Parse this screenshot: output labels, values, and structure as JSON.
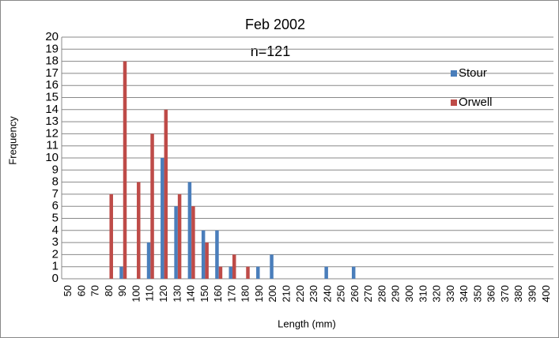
{
  "chart_data": {
    "type": "bar",
    "title": "Feb 2002",
    "subtitle": "n=121",
    "x_label": "Length (mm)",
    "y_label": "Frequency",
    "categories": [
      50,
      60,
      70,
      80,
      90,
      100,
      110,
      120,
      130,
      140,
      150,
      160,
      170,
      180,
      190,
      200,
      210,
      220,
      230,
      240,
      250,
      260,
      270,
      280,
      290,
      300,
      310,
      320,
      330,
      340,
      350,
      360,
      370,
      380,
      390,
      400
    ],
    "series": [
      {
        "name": "Stour",
        "color": "#4a7ebb",
        "values": [
          0,
          0,
          0,
          0,
          1,
          0,
          3,
          10,
          6,
          8,
          4,
          4,
          1,
          0,
          1,
          2,
          0,
          0,
          0,
          1,
          0,
          1,
          0,
          0,
          0,
          0,
          0,
          0,
          0,
          0,
          0,
          0,
          0,
          0,
          0,
          0
        ]
      },
      {
        "name": "Orwell",
        "color": "#be4b48",
        "values": [
          0,
          0,
          0,
          7,
          18,
          8,
          12,
          14,
          7,
          6,
          3,
          1,
          2,
          1,
          0,
          0,
          0,
          0,
          0,
          0,
          0,
          0,
          0,
          0,
          0,
          0,
          0,
          0,
          0,
          0,
          0,
          0,
          0,
          0,
          0,
          0
        ]
      }
    ],
    "ylim": [
      0,
      20
    ],
    "yticks": [
      0,
      1,
      2,
      3,
      4,
      5,
      6,
      7,
      8,
      9,
      10,
      11,
      12,
      13,
      14,
      15,
      16,
      17,
      18,
      19,
      20
    ],
    "grid": true
  }
}
